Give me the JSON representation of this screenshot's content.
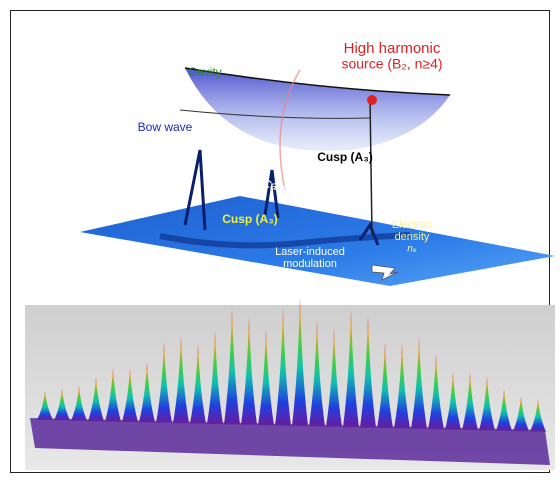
{
  "top_panel": {
    "source_label": [
      "High harmonic",
      "source (B₂, n≥4)"
    ],
    "cavity_label": "Cavity",
    "bow_wave_label": "Bow wave",
    "cavity_wall_label": "Cavity wall",
    "cusp_labels": [
      "Cusp (A₃)",
      "Cusp (A₃)"
    ],
    "density_label": [
      "Electron",
      "density",
      "nₑ"
    ],
    "modulation_label": [
      "Laser-induced",
      "modulation"
    ]
  }
}
